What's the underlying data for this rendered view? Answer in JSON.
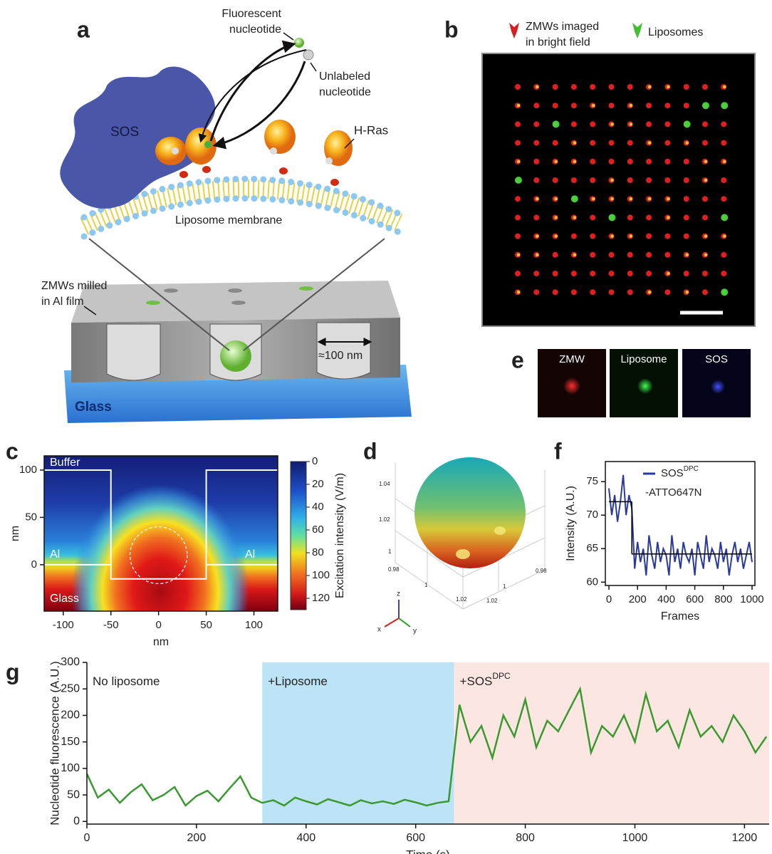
{
  "panel_labels": [
    "a",
    "b",
    "c",
    "d",
    "e",
    "f",
    "g"
  ],
  "diagram_a": {
    "fluorescent_nucleotide": [
      "Fluorescent",
      "nucleotide"
    ],
    "unlabeled_nucleotide": [
      "Unlabeled",
      "nucleotide"
    ],
    "sos": "SOS",
    "h_ras": "H-Ras",
    "membrane": "Liposome membrane",
    "zmw": [
      "ZMWs milled",
      "in Al film"
    ],
    "size": "≈100 nm",
    "glass": "Glass"
  },
  "image_b": {
    "legend": [
      {
        "label": [
          "ZMWs imaged",
          "in bright field"
        ],
        "color": "#d42020"
      },
      {
        "label": [
          "Liposomes"
        ],
        "color": "#40c030"
      }
    ]
  },
  "sphere_d": {
    "tick_labels": [
      "1.04",
      "1.02",
      "1",
      "0.98",
      "1",
      "1.02",
      "1.02",
      "1",
      "0.98"
    ],
    "axes": [
      "x",
      "y",
      "z"
    ]
  },
  "images_e": [
    "ZMW",
    "Liposome",
    "SOS"
  ],
  "chart_data": [
    {
      "type": "heatmap",
      "xlabel": "nm",
      "ylabel": "nm",
      "xlim": [
        -120,
        125
      ],
      "ylim": [
        -49,
        115
      ],
      "xticks": [
        -100,
        -50,
        0,
        50,
        100
      ],
      "yticks": [
        0,
        50,
        100
      ],
      "colorbar": {
        "label": "Excitation intensity (V/m)",
        "lim": [
          0,
          130
        ],
        "ticks": [
          0,
          20,
          40,
          60,
          80,
          100,
          120
        ]
      },
      "outline": {
        "x": [
          -120,
          -50,
          -50,
          50,
          50,
          125
        ],
        "y": [
          100,
          100,
          -15,
          -15,
          100,
          100
        ]
      },
      "interface": {
        "y": 0,
        "segments": [
          [
            -120,
            -50
          ],
          [
            50,
            125
          ]
        ]
      },
      "focus": {
        "x": 0,
        "y": 10,
        "r": 30
      },
      "region_labels": [
        "Buffer",
        "Al",
        "Al",
        "Glass"
      ]
    },
    {
      "type": "line",
      "xlabel": "Frames",
      "ylabel": "Intensity (A.U.)",
      "xlim": [
        -25,
        1020
      ],
      "ylim": [
        59.5,
        78
      ],
      "xticks": [
        0,
        200,
        400,
        600,
        800,
        1000
      ],
      "yticks": [
        60,
        65,
        70,
        75
      ],
      "x": [
        0,
        20,
        40,
        60,
        80,
        100,
        120,
        140,
        160,
        180,
        200,
        220,
        240,
        260,
        280,
        300,
        320,
        340,
        360,
        380,
        400,
        420,
        440,
        460,
        480,
        500,
        520,
        540,
        560,
        580,
        600,
        620,
        640,
        660,
        680,
        700,
        720,
        740,
        760,
        780,
        800,
        820,
        840,
        860,
        880,
        900,
        920,
        940,
        960,
        980,
        1000
      ],
      "series": [
        {
          "name": "SOS",
          "name_sup": "DPC",
          "name_line2": "-ATTO647N",
          "color": "#2a3a9a",
          "values": [
            74,
            70,
            73,
            69,
            72,
            76,
            70,
            73,
            71,
            62,
            66,
            63,
            65,
            61,
            67,
            64,
            62,
            66,
            63,
            65,
            64,
            61,
            67,
            63,
            65,
            62,
            66,
            64,
            63,
            65,
            61,
            66,
            64,
            62,
            67,
            63,
            65,
            64,
            62,
            66,
            63,
            65,
            61,
            64,
            66,
            63,
            65,
            62,
            64,
            66,
            63
          ]
        }
      ],
      "fit": {
        "color": "#000000",
        "levels": [
          {
            "x": [
              0,
              160
            ],
            "y": 72
          },
          {
            "x": [
              160,
              1000
            ],
            "y": 64.2
          }
        ]
      }
    },
    {
      "type": "line",
      "xlabel": "Time (s)",
      "ylabel": "Nucleotide fluorescence (A.U.)",
      "xlim": [
        0,
        1245
      ],
      "ylim": [
        -5,
        300
      ],
      "xticks": [
        0,
        200,
        400,
        600,
        800,
        1000,
        1200
      ],
      "yticks": [
        0,
        50,
        100,
        150,
        200,
        250,
        300
      ],
      "x": [
        0,
        20,
        40,
        60,
        80,
        100,
        120,
        140,
        160,
        180,
        200,
        220,
        240,
        260,
        280,
        300,
        320,
        340,
        360,
        380,
        400,
        420,
        440,
        460,
        480,
        500,
        520,
        540,
        560,
        580,
        600,
        620,
        640,
        660,
        680,
        700,
        720,
        740,
        760,
        780,
        800,
        820,
        840,
        860,
        880,
        900,
        920,
        940,
        960,
        980,
        1000,
        1020,
        1040,
        1060,
        1080,
        1100,
        1120,
        1140,
        1160,
        1180,
        1200,
        1220,
        1240
      ],
      "series": [
        {
          "color": "#3a9a30",
          "values": [
            90,
            45,
            60,
            35,
            55,
            70,
            40,
            50,
            65,
            30,
            48,
            58,
            38,
            62,
            85,
            45,
            35,
            40,
            30,
            45,
            38,
            32,
            42,
            36,
            30,
            40,
            34,
            38,
            33,
            41,
            36,
            30,
            35,
            38,
            220,
            150,
            180,
            120,
            200,
            160,
            230,
            140,
            190,
            170,
            210,
            250,
            130,
            180,
            160,
            200,
            150,
            240,
            170,
            190,
            140,
            210,
            160,
            180,
            150,
            200,
            170,
            130,
            160
          ]
        }
      ],
      "regions": [
        {
          "label": "No liposome",
          "start": 0,
          "end": 320,
          "color": "#ffffff"
        },
        {
          "label": "+Liposome",
          "start": 320,
          "end": 670,
          "color": "#bde3f6"
        },
        {
          "label": "+SOS",
          "label_sup": "DPC",
          "start": 670,
          "end": 1245,
          "color": "#fbe6e2"
        }
      ]
    }
  ]
}
